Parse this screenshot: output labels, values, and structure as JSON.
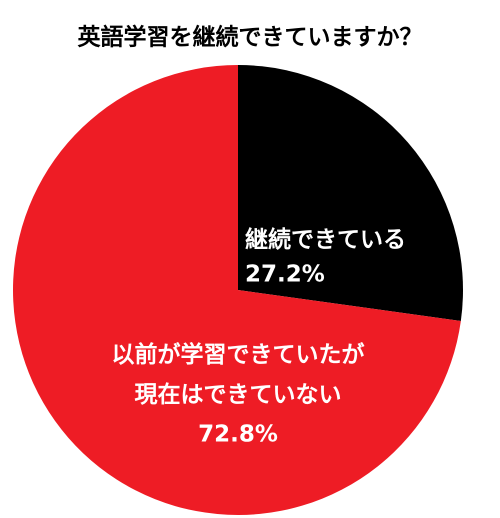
{
  "chart_data": {
    "type": "pie",
    "title": "英語学習を継続できていますか？",
    "categories": [
      "継続できている",
      "以前が学習できていたが\n現在はできていない"
    ],
    "values": [
      27.2,
      72.8
    ],
    "value_labels": [
      "27.2%",
      "72.8%"
    ],
    "colors": [
      "#000000",
      "#ee1c25"
    ]
  }
}
